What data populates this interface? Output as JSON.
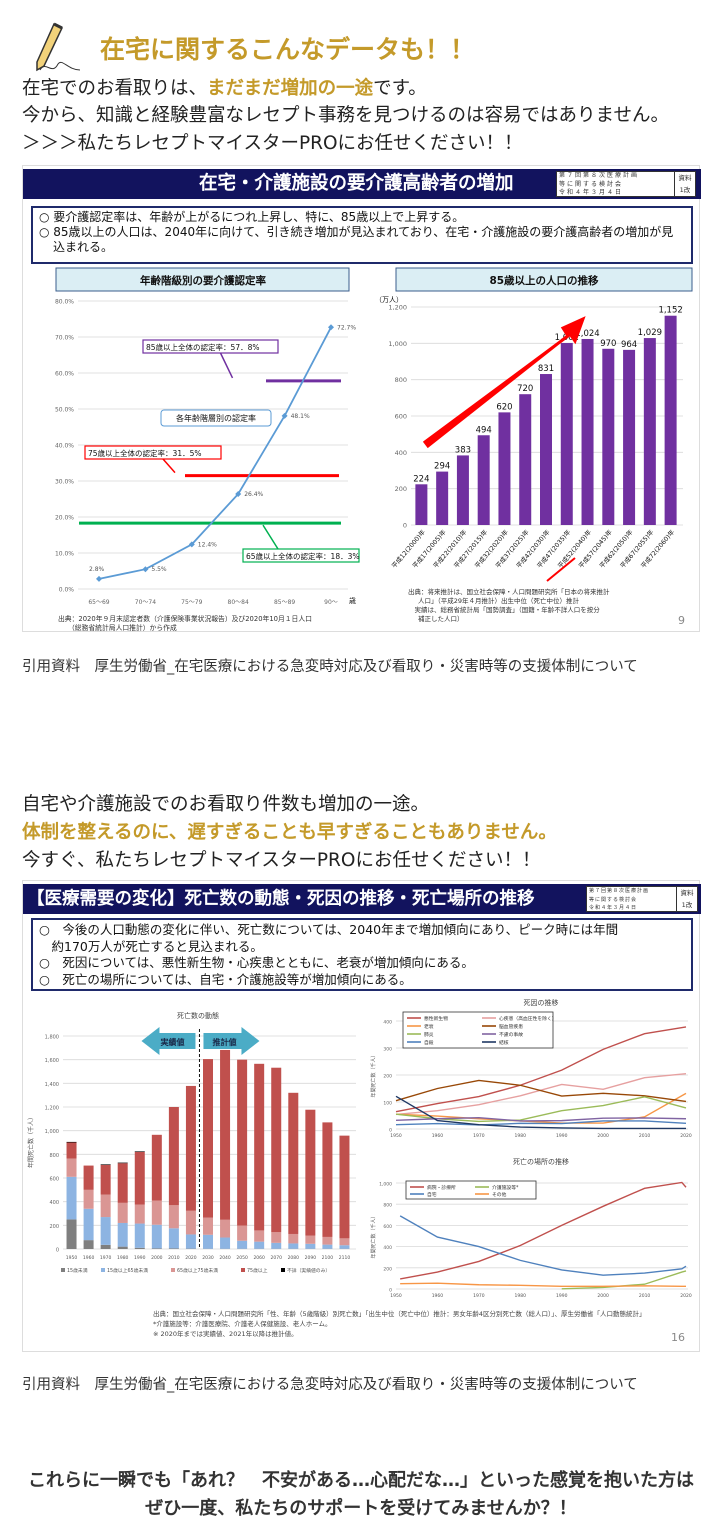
{
  "header": {
    "title": "在宅に関するこんなデータも！！",
    "icon": "pencil-icon"
  },
  "intro": {
    "line1_pre": "在宅でのお看取りは、",
    "line1_em": "まだまだ増加の一途",
    "line1_post": "です。",
    "line2": "今から、知識と経験豊富なレセプト事務を見つけるのは容易ではありません。",
    "line3": "＞＞＞私たちレセプトマイスターPROにお任せください！！"
  },
  "slide1": {
    "title": "在宅・介護施設の要介護高齢者の増加",
    "meta": {
      "row1": "第７回第８次医療計画",
      "row2": "等に関する検討会",
      "row3": "令和４年３月４日",
      "doc": "資料",
      "docno": "1改"
    },
    "bullets": [
      "○ 要介護認定率は、年齢が上がるにつれ上昇し、特に、85歳以上で上昇する。",
      "○ 85歳以上の人口は、2040年に向けて、引き続き増加が見込まれており、在宅・介護施設の要介護高齢者の増加が見込まれる。"
    ],
    "page": "9"
  },
  "citation1": "引用資料　厚生労働省_在宅医療における急変時対応及び看取り・災害時等の支援体制について",
  "section2": {
    "line1": "自宅や介護施設でのお看取り件数も増加の一途。",
    "line2": "体制を整えるのに、遅すぎることも早すぎることもありません。",
    "line3": "今すぐ、私たちレセプトマイスターPROにお任せください！！"
  },
  "slide2": {
    "title": "【医療需要の変化】死亡数の動態・死因の推移・死亡場所の推移",
    "meta": {
      "row1": "第７回第８次医療計画",
      "row2": "等に関する検討会",
      "row3": "令和４年３月４日",
      "doc": "資料",
      "docno": "1改"
    },
    "bullets": [
      "○　今後の人口動態の変化に伴い、死亡数については、2040年まで増加傾向にあり、ピーク時には年間",
      "　約170万人が死亡すると見込まれる。",
      "○　死因については、悪性新生物・心疾患とともに、老衰が増加傾向にある。",
      "○　死亡の場所については、自宅・介護施設等が増加傾向にある。"
    ],
    "sources": [
      "出典：国立社会保障・人口問題研究所「性、年齢（5歳階級）別死亡数」「出生中位（死亡中位）推計：男女年齢4区分別死亡数（総人口）」、厚生労働省「人口動態統計」",
      "*介護施設等：介護医療院、介護老人保健施設、老人ホーム。",
      "※ 2020年までは実績値、2021年以降は推計値。"
    ],
    "page": "16"
  },
  "citation2": "引用資料　厚生労働省_在宅医療における急変時対応及び看取り・災害時等の支援体制について",
  "closing": {
    "line1": "これらに一瞬でも「あれ？　不安がある…心配だな…」といった感覚を抱いた方は",
    "line2": "ぜひ一度、私たちのサポートを受けてみませんか？！"
  },
  "colors": {
    "accent_gold": "#c49a2a",
    "slide_header": "#12135e"
  },
  "chart_data": [
    {
      "type": "line",
      "title": "年齢階級別の要介護認定率",
      "categories": [
        "65～69",
        "70～74",
        "75～79",
        "80～84",
        "85～89",
        "90～"
      ],
      "x_unit": "歳",
      "values": [
        2.8,
        5.5,
        12.4,
        26.4,
        48.1,
        72.7
      ],
      "value_labels": [
        "2.8%",
        "5.5%",
        "12.4%",
        "26.4%",
        "48.1%",
        "72.7%"
      ],
      "ylim": [
        0,
        80
      ],
      "yticks": [
        "0.0%",
        "10.0%",
        "20.0%",
        "30.0%",
        "40.0%",
        "50.0%",
        "60.0%",
        "70.0%",
        "80.0%"
      ],
      "grid": true,
      "color": "#5b9bd5",
      "series_callout": "各年齢階層別の認定率",
      "reference_lines": [
        {
          "label": "85歳以上全体の認定率：57．8%",
          "value": 57.8,
          "color": "#7030a0"
        },
        {
          "label": "75歳以上全体の認定率：31．5%",
          "value": 31.5,
          "color": "#ff0000"
        },
        {
          "label": "65歳以上全体の認定率：18．3%",
          "value": 18.3,
          "color": "#00b050"
        }
      ],
      "source": [
        "出典：2020年９月末認定者数（介護保険事業状況報告）及び2020年10月１日人口",
        "（総務省統計局人口推計）から作成"
      ]
    },
    {
      "type": "bar",
      "title": "85歳以上の人口の推移",
      "ylabel": "（万人）",
      "ylim": [
        0,
        1200
      ],
      "yticks": [
        "0",
        "200",
        "400",
        "600",
        "800",
        "1,000",
        "1,200"
      ],
      "grid": true,
      "color": "#7030a0",
      "annotation": "increasing-trend-arrow",
      "categories": [
        "平成12(2000)年",
        "平成17(2005)年",
        "平成22(2010)年",
        "平成27(2015)年",
        "平成32(2020)年",
        "平成37(2025)年",
        "平成42(2030)年",
        "平成47(2035)年",
        "平成52(2040)年",
        "平成57(2045)年",
        "平成62(2050)年",
        "平成67(2055)年",
        "平成72(2060)年"
      ],
      "values": [
        224,
        294,
        383,
        494,
        620,
        720,
        831,
        1002,
        1024,
        970,
        964,
        1029,
        1152
      ],
      "value_labels": [
        "224",
        "294",
        "383",
        "494",
        "620",
        "720",
        "831",
        "1,002",
        "1,024",
        "970",
        "964",
        "1,029",
        "1,152"
      ],
      "source": [
        "出典：将来推計は、国立社会保障・人口問題研究所「日本の将来推計",
        "人口」（平成29年４月推計）出生中位（死亡中位）推計",
        "　実績は、総務省統計局「国勢調査」（国籍・年齢不詳人口を按分",
        "補正した人口）"
      ]
    },
    {
      "type": "bar",
      "stacked": true,
      "title": "死亡数の動態",
      "ylabel": "年間死亡数（千人）",
      "ylim": [
        0,
        1800
      ],
      "yticks": [
        "0",
        "200",
        "400",
        "600",
        "800",
        "1,000",
        "1,200",
        "1,400",
        "1,600",
        "1,800"
      ],
      "grid": true,
      "annotations": [
        "実績値",
        "推計値"
      ],
      "categories": [
        "1950",
        "1960",
        "1970",
        "1980",
        "1990",
        "2000",
        "2010",
        "2020",
        "2030",
        "2040",
        "2050",
        "2060",
        "2070",
        "2080",
        "2090",
        "2100",
        "2110"
      ],
      "series": [
        {
          "name": "15歳未満",
          "color": "#7f7f7f",
          "values": [
            250,
            75,
            35,
            20,
            10,
            5,
            5,
            3,
            2,
            2,
            2,
            2,
            2,
            2,
            2,
            2,
            2
          ]
        },
        {
          "name": "15歳以上65歳未満",
          "color": "#8db4e2",
          "values": [
            360,
            265,
            235,
            200,
            205,
            200,
            170,
            120,
            118,
            95,
            68,
            60,
            50,
            45,
            42,
            35,
            30
          ]
        },
        {
          "name": "65歳以上75歳未満",
          "color": "#da9694",
          "values": [
            155,
            160,
            190,
            170,
            160,
            205,
            195,
            200,
            145,
            150,
            128,
            95,
            90,
            80,
            70,
            65,
            58
          ]
        },
        {
          "name": "75歳以上",
          "color": "#c0504d",
          "values": [
            135,
            205,
            250,
            335,
            445,
            555,
            830,
            1055,
            1340,
            1435,
            1402,
            1408,
            1390,
            1193,
            1063,
            968,
            868
          ]
        },
        {
          "name": "不詳（実績値のみ）",
          "color": "#000000",
          "values": [
            5,
            0,
            5,
            5,
            5,
            0,
            0,
            0,
            0,
            0,
            0,
            0,
            0,
            0,
            0,
            0,
            0
          ]
        }
      ]
    },
    {
      "type": "line",
      "title": "死因の推移",
      "ylabel": "年間死亡数（千人）",
      "ylim": [
        0,
        400
      ],
      "yticks": [
        "0",
        "100",
        "200",
        "300",
        "400"
      ],
      "x": [
        1950,
        1960,
        1970,
        1980,
        1990,
        2000,
        2010,
        2020
      ],
      "xticks": [
        "1950",
        "1960",
        "1970",
        "1980",
        "1990",
        "2000",
        "2010",
        "2020"
      ],
      "grid": true,
      "legend": "top-left",
      "series": [
        {
          "name": "悪性新生物",
          "color": "#c0504d",
          "values": [
            64,
            94,
            120,
            162,
            218,
            295,
            353,
            378
          ]
        },
        {
          "name": "心疾患（高血圧性を除く）",
          "color": "#e6a0a0",
          "values": [
            54,
            68,
            90,
            123,
            165,
            147,
            190,
            205
          ]
        },
        {
          "name": "老衰",
          "color": "#f79646",
          "values": [
            55,
            48,
            38,
            30,
            22,
            22,
            45,
            132
          ]
        },
        {
          "name": "脳血管疾患",
          "color": "#984807",
          "values": [
            105,
            150,
            180,
            162,
            122,
            132,
            123,
            102
          ]
        },
        {
          "name": "肺炎",
          "color": "#9bbb59",
          "values": [
            55,
            38,
            28,
            33,
            68,
            87,
            119,
            78
          ]
        },
        {
          "name": "不慮の事故",
          "color": "#8064a2",
          "values": [
            32,
            38,
            42,
            30,
            31,
            40,
            41,
            38
          ]
        },
        {
          "name": "自殺",
          "color": "#4f81bd",
          "values": [
            16,
            20,
            15,
            21,
            20,
            30,
            30,
            21
          ]
        },
        {
          "name": "結核",
          "color": "#1f3864",
          "values": [
            121,
            31,
            16,
            7,
            4,
            2,
            2,
            2
          ]
        }
      ]
    },
    {
      "type": "line",
      "title": "死亡の場所の推移",
      "ylabel": "年間死亡数（千人）",
      "ylim": [
        0,
        1000
      ],
      "yticks": [
        "0",
        "200",
        "400",
        "600",
        "800",
        "1,000"
      ],
      "x": [
        1951,
        1960,
        1970,
        1980,
        1990,
        2000,
        2010,
        2019,
        2020
      ],
      "xticks": [
        "1950",
        "1960",
        "1970",
        "1980",
        "1990",
        "2000",
        "2010",
        "2020"
      ],
      "grid": true,
      "legend": "top-left",
      "series": [
        {
          "name": "病院・診療所",
          "color": "#c0504d",
          "values": [
            95,
            160,
            260,
            410,
            600,
            780,
            950,
            1005,
            960
          ]
        },
        {
          "name": "介護施設等*",
          "color": "#9bbb59",
          "values": [
            null,
            null,
            null,
            null,
            2,
            15,
            45,
            160,
            170
          ]
        },
        {
          "name": "自宅",
          "color": "#4f81bd",
          "values": [
            690,
            490,
            400,
            270,
            180,
            130,
            150,
            190,
            215
          ]
        },
        {
          "name": "その他",
          "color": "#f79646",
          "values": [
            50,
            55,
            40,
            35,
            25,
            25,
            30,
            25,
            25
          ]
        }
      ]
    }
  ]
}
